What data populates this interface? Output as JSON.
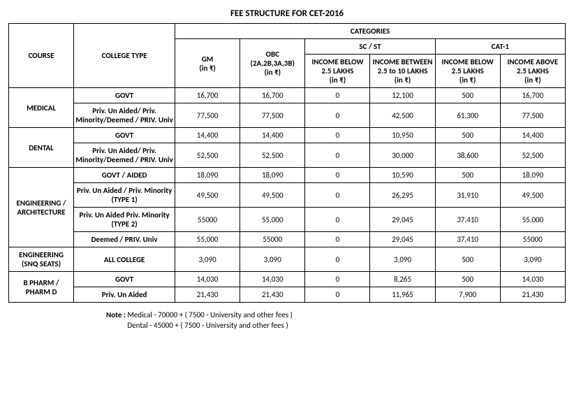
{
  "title": "FEE STRUCTURE FOR CET-2016",
  "headers": {
    "categories": "CATEGORIES",
    "course": "COURSE",
    "college_type": "COLLEGE TYPE",
    "gm": "GM\n(in ₹)",
    "obc": "OBC\n(2A,2B,3A,3B)\n(in ₹)",
    "scst_group": "SC / ST",
    "scst_below": "INCOME BELOW 2.5 LAKHS\n(in ₹)",
    "scst_between": "INCOME BETWEEN\n2.5 to 10 LAKHS\n(in ₹)",
    "cat1_group": "CAT-1",
    "cat1_below": "INCOME BELOW 2.5 LAKHS\n(in ₹)",
    "cat1_above": "INCOME ABOVE 2.5 LAKHS\n(in ₹)"
  },
  "courses": [
    {
      "name": "MEDICAL",
      "rows": [
        {
          "college": "GOVT",
          "gm": "16,700",
          "obc": "16,700",
          "scst_below": "0",
          "scst_between": "12,100",
          "cat1_below": "500",
          "cat1_above": "16,700"
        },
        {
          "college": "Priv. Un Aided/ Priv. Minority/Deemed / PRIV. Univ",
          "gm": "77,500",
          "obc": "77,500",
          "scst_below": "0",
          "scst_between": "42,500",
          "cat1_below": "61,300",
          "cat1_above": "77,500"
        }
      ]
    },
    {
      "name": "DENTAL",
      "rows": [
        {
          "college": "GOVT",
          "gm": "14,400",
          "obc": "14,400",
          "scst_below": "0",
          "scst_between": "10,950",
          "cat1_below": "500",
          "cat1_above": "14,400"
        },
        {
          "college": "Priv. Un Aided/ Priv. Minority/Deemed / PRIV. Univ",
          "gm": "52,500",
          "obc": "52,500",
          "scst_below": "0",
          "scst_between": "30,000",
          "cat1_below": "38,600",
          "cat1_above": "52,500"
        }
      ]
    },
    {
      "name": "ENGINEERING / ARCHITECTURE",
      "rows": [
        {
          "college": "GOVT / AIDED",
          "gm": "18,090",
          "obc": "18,090",
          "scst_below": "0",
          "scst_between": "10,590",
          "cat1_below": "500",
          "cat1_above": "18,090"
        },
        {
          "college": "Priv. Un Aided / Priv. Minority (TYPE 1)",
          "gm": "49,500",
          "obc": "49,500",
          "scst_below": "0",
          "scst_between": "26,295",
          "cat1_below": "31,910",
          "cat1_above": "49,500"
        },
        {
          "college": "Priv. Un Aided Priv. Minority (TYPE 2)",
          "gm": "55000",
          "obc": "55,000",
          "scst_below": "0",
          "scst_between": "29,045",
          "cat1_below": "37,410",
          "cat1_above": "55,000"
        },
        {
          "college": "Deemed / PRIV. Univ",
          "gm": "55,000",
          "obc": "55000",
          "scst_below": "0",
          "scst_between": "29,045",
          "cat1_below": "37,410",
          "cat1_above": "55000"
        }
      ]
    },
    {
      "name": "ENGINEERING (SNQ SEATS)",
      "rows": [
        {
          "college": "ALL COLLEGE",
          "gm": "3,090",
          "obc": "3,090",
          "scst_below": "0",
          "scst_between": "3,090",
          "cat1_below": "500",
          "cat1_above": "3,090"
        }
      ]
    },
    {
      "name": "B PHARM / PHARM D",
      "rows": [
        {
          "college": "GOVT",
          "gm": "14,030",
          "obc": "14,030",
          "scst_below": "0",
          "scst_between": "8,265",
          "cat1_below": "500",
          "cat1_above": "14,030"
        },
        {
          "college": "Priv. Un Aided",
          "gm": "21,430",
          "obc": "21,430",
          "scst_below": "0",
          "scst_between": "11,965",
          "cat1_below": "7,900",
          "cat1_above": "21,430"
        }
      ]
    }
  ],
  "note_label": "Note :",
  "note_lines": [
    "Medical - 70000 + ( 7500 - University and other fees )",
    "Dental - 45000 + ( 7500 - University and other fees )"
  ],
  "colors": {
    "border": "#000000",
    "text": "#000000",
    "background": "#ffffff"
  }
}
